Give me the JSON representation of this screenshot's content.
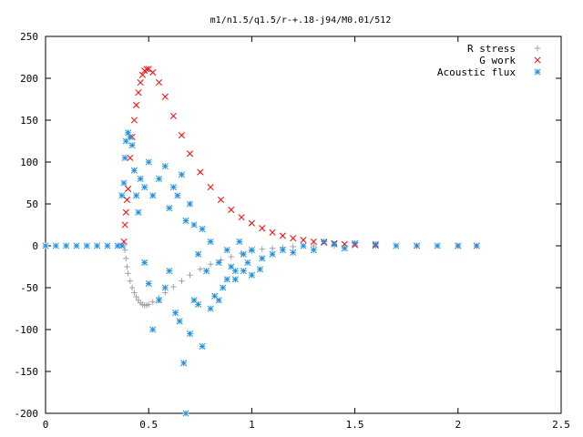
{
  "chart_data": {
    "type": "scatter",
    "title": "m1/n1.5/q1.5/r-+.18-j94/M0.01/512",
    "xlim": [
      0,
      2.5
    ],
    "ylim": [
      -200,
      250
    ],
    "x_ticks": [
      "0",
      "0.5",
      "1",
      "1.5",
      "2",
      "2.5"
    ],
    "y_ticks": [
      "-200",
      "-150",
      "-100",
      "-50",
      "0",
      "50",
      "100",
      "150",
      "200",
      "250"
    ],
    "legend_position": "top-right",
    "grid": false,
    "series": [
      {
        "name": "R stress",
        "marker": "plus",
        "color": "#a0a0a0",
        "points": [
          [
            0.38,
            0
          ],
          [
            0.385,
            -5
          ],
          [
            0.39,
            -15
          ],
          [
            0.395,
            -25
          ],
          [
            0.4,
            -33
          ],
          [
            0.41,
            -42
          ],
          [
            0.42,
            -50
          ],
          [
            0.43,
            -56
          ],
          [
            0.44,
            -61
          ],
          [
            0.45,
            -65
          ],
          [
            0.46,
            -68
          ],
          [
            0.47,
            -70
          ],
          [
            0.48,
            -71
          ],
          [
            0.49,
            -71
          ],
          [
            0.5,
            -70
          ],
          [
            0.52,
            -67
          ],
          [
            0.55,
            -62
          ],
          [
            0.58,
            -56
          ],
          [
            0.62,
            -49
          ],
          [
            0.66,
            -42
          ],
          [
            0.7,
            -35
          ],
          [
            0.75,
            -28
          ],
          [
            0.8,
            -22
          ],
          [
            0.85,
            -17
          ],
          [
            0.9,
            -13
          ],
          [
            0.95,
            -9
          ],
          [
            1.0,
            -6
          ],
          [
            1.05,
            -4
          ],
          [
            1.1,
            -3
          ],
          [
            1.15,
            -2
          ],
          [
            1.2,
            -1
          ],
          [
            1.3,
            0
          ],
          [
            1.4,
            0
          ],
          [
            1.6,
            0
          ],
          [
            1.8,
            0
          ],
          [
            2.0,
            0
          ],
          [
            2.09,
            0
          ]
        ]
      },
      {
        "name": "G work",
        "marker": "cross",
        "color": "#ff0000",
        "points": [
          [
            0.38,
            5
          ],
          [
            0.385,
            25
          ],
          [
            0.39,
            40
          ],
          [
            0.395,
            55
          ],
          [
            0.4,
            68
          ],
          [
            0.41,
            105
          ],
          [
            0.42,
            130
          ],
          [
            0.43,
            150
          ],
          [
            0.44,
            168
          ],
          [
            0.45,
            183
          ],
          [
            0.46,
            195
          ],
          [
            0.47,
            204
          ],
          [
            0.48,
            209
          ],
          [
            0.49,
            211
          ],
          [
            0.5,
            211
          ],
          [
            0.52,
            207
          ],
          [
            0.55,
            195
          ],
          [
            0.58,
            178
          ],
          [
            0.62,
            155
          ],
          [
            0.66,
            132
          ],
          [
            0.7,
            110
          ],
          [
            0.75,
            88
          ],
          [
            0.8,
            70
          ],
          [
            0.85,
            55
          ],
          [
            0.9,
            43
          ],
          [
            0.95,
            34
          ],
          [
            1.0,
            27
          ],
          [
            1.05,
            21
          ],
          [
            1.1,
            16
          ],
          [
            1.15,
            12
          ],
          [
            1.2,
            9
          ],
          [
            1.25,
            7
          ],
          [
            1.3,
            5
          ],
          [
            1.35,
            4
          ],
          [
            1.4,
            3
          ],
          [
            1.45,
            2
          ],
          [
            1.5,
            1
          ],
          [
            1.6,
            0.5
          ],
          [
            1.8,
            0
          ],
          [
            2.0,
            0
          ],
          [
            2.09,
            0
          ]
        ]
      },
      {
        "name": "Acoustic flux",
        "marker": "star",
        "color": "#1f8fe0",
        "points": [
          [
            0.0,
            0
          ],
          [
            0.05,
            0
          ],
          [
            0.1,
            0
          ],
          [
            0.15,
            0
          ],
          [
            0.2,
            0
          ],
          [
            0.25,
            0
          ],
          [
            0.3,
            0
          ],
          [
            0.35,
            0
          ],
          [
            0.37,
            0
          ],
          [
            0.37,
            60
          ],
          [
            0.38,
            75
          ],
          [
            0.385,
            105
          ],
          [
            0.39,
            125
          ],
          [
            0.4,
            135
          ],
          [
            0.41,
            130
          ],
          [
            0.42,
            120
          ],
          [
            0.43,
            90
          ],
          [
            0.44,
            60
          ],
          [
            0.45,
            40
          ],
          [
            0.46,
            80
          ],
          [
            0.48,
            70
          ],
          [
            0.5,
            100
          ],
          [
            0.52,
            60
          ],
          [
            0.55,
            80
          ],
          [
            0.58,
            95
          ],
          [
            0.6,
            45
          ],
          [
            0.62,
            70
          ],
          [
            0.64,
            60
          ],
          [
            0.66,
            85
          ],
          [
            0.68,
            30
          ],
          [
            0.7,
            50
          ],
          [
            0.72,
            25
          ],
          [
            0.74,
            -10
          ],
          [
            0.76,
            20
          ],
          [
            0.78,
            -30
          ],
          [
            0.8,
            5
          ],
          [
            0.82,
            -60
          ],
          [
            0.84,
            -20
          ],
          [
            0.86,
            -50
          ],
          [
            0.88,
            -5
          ],
          [
            0.9,
            -25
          ],
          [
            0.92,
            -40
          ],
          [
            0.94,
            5
          ],
          [
            0.96,
            -10
          ],
          [
            0.98,
            -20
          ],
          [
            1.0,
            -5
          ],
          [
            1.05,
            -15
          ],
          [
            1.1,
            -10
          ],
          [
            1.15,
            -5
          ],
          [
            1.2,
            -8
          ],
          [
            1.25,
            0
          ],
          [
            1.3,
            -5
          ],
          [
            1.35,
            5
          ],
          [
            1.4,
            2
          ],
          [
            1.45,
            -3
          ],
          [
            1.5,
            3
          ],
          [
            1.6,
            2
          ],
          [
            1.7,
            0
          ],
          [
            1.8,
            0
          ],
          [
            1.9,
            0
          ],
          [
            2.0,
            0
          ],
          [
            2.09,
            0
          ],
          [
            0.48,
            -20
          ],
          [
            0.5,
            -45
          ],
          [
            0.52,
            -100
          ],
          [
            0.55,
            -65
          ],
          [
            0.58,
            -50
          ],
          [
            0.6,
            -30
          ],
          [
            0.63,
            -80
          ],
          [
            0.65,
            -90
          ],
          [
            0.67,
            -140
          ],
          [
            0.68,
            -200
          ],
          [
            0.7,
            -105
          ],
          [
            0.72,
            -65
          ],
          [
            0.74,
            -70
          ],
          [
            0.76,
            -120
          ],
          [
            0.8,
            -75
          ],
          [
            0.84,
            -65
          ],
          [
            0.88,
            -40
          ],
          [
            0.92,
            -30
          ],
          [
            0.96,
            -30
          ],
          [
            1.0,
            -35
          ],
          [
            1.04,
            -28
          ]
        ]
      }
    ]
  }
}
